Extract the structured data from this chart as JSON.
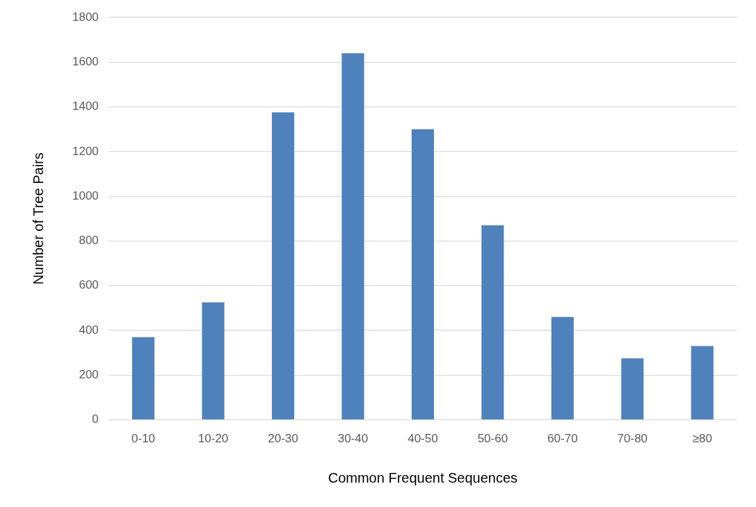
{
  "chart_data": {
    "type": "bar",
    "xlabel": "Common Frequent Sequences",
    "ylabel": "Number of Tree Pairs",
    "categories": [
      "0-10",
      "10-20",
      "20-30",
      "30-40",
      "40-50",
      "50-60",
      "60-70",
      "70-80",
      "≥80"
    ],
    "values": [
      370,
      525,
      1375,
      1640,
      1300,
      870,
      460,
      275,
      330
    ],
    "color": "#4f81bd",
    "ylim": [
      0,
      1800
    ],
    "yticks": [
      0,
      200,
      400,
      600,
      800,
      1000,
      1200,
      1400,
      1600,
      1800
    ],
    "grid": "y",
    "legend": false
  }
}
